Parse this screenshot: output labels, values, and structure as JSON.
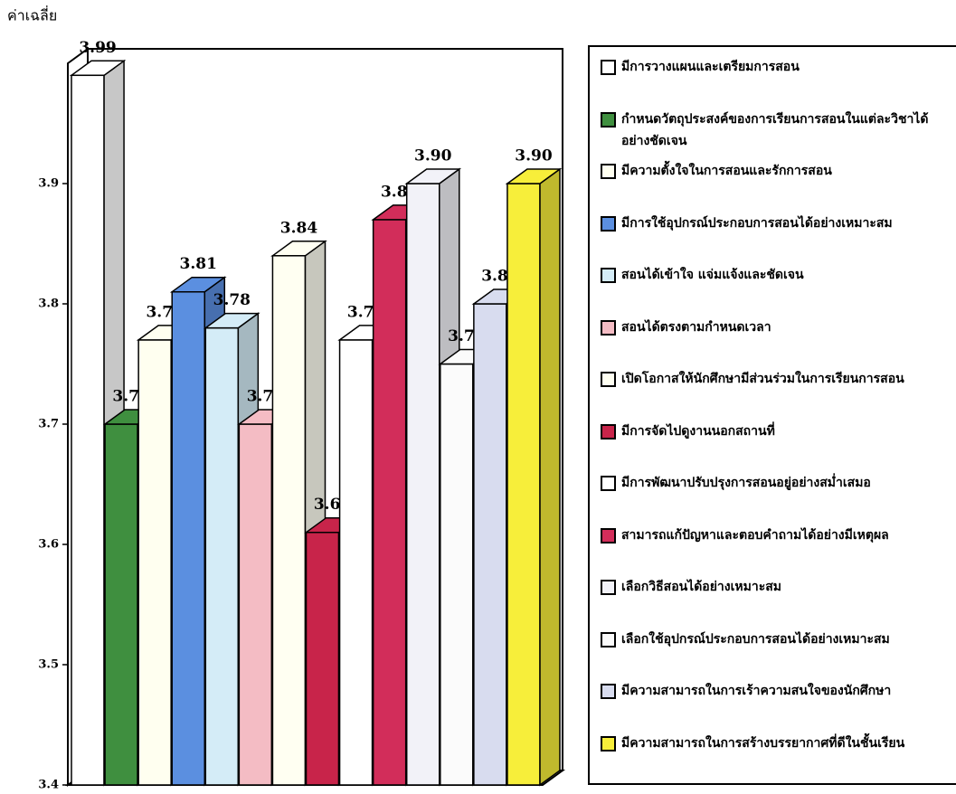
{
  "chart_data": {
    "type": "bar3d",
    "y_label": "ค่าเฉลี่ย",
    "ylim": [
      3.4,
      4.0
    ],
    "yticks": [
      3.4,
      3.5,
      3.6,
      3.7,
      3.8,
      3.9
    ],
    "series": [
      {
        "name": "มีการวางแผนและเตรียมการสอน",
        "color": "#ffffff",
        "values": [
          3.99
        ],
        "value_labels": [
          "3.99"
        ]
      },
      {
        "name": "กำหนดวัตถุประสงค์ของการเรียนการสอนในแต่ละวิชาได้อย่างชัดเจน",
        "color": "#3f8f3f",
        "values": [
          3.7
        ],
        "value_labels": [
          "3.70"
        ]
      },
      {
        "name": "มีความตั้งใจในการสอนและรักการสอน",
        "color": "#fffff0",
        "values": [
          3.77
        ],
        "value_labels": [
          "3.77"
        ]
      },
      {
        "name": "มีการใช้อุปกรณ์ประกอบการสอนได้อย่างเหมาะสม",
        "color": "#5b8fe0",
        "values": [
          3.81
        ],
        "value_labels": [
          "3.81"
        ]
      },
      {
        "name": "สอนได้เข้าใจ แจ่มแจ้งและชัดเจน",
        "color": "#d4ecf7",
        "values": [
          3.78
        ],
        "value_labels": [
          "3.78"
        ]
      },
      {
        "name": "สอนได้ตรงตามกำหนดเวลา",
        "color": "#f4bcc4",
        "values": [
          3.7
        ],
        "value_labels": [
          "3.70"
        ]
      },
      {
        "name": "เปิดโอกาสให้นักศึกษามีส่วนร่วมในการเรียนการสอน",
        "color": "#fffff2",
        "values": [
          3.84
        ],
        "value_labels": [
          "3.84"
        ]
      },
      {
        "name": "มีการจัดไปดูงานนอกสถานที่",
        "color": "#c8244a",
        "values": [
          3.61
        ],
        "value_labels": [
          "3.61"
        ]
      },
      {
        "name": "มีการพัฒนาปรับปรุงการสอนอยู่อย่างสม่ำเสมอ",
        "color": "#ffffff",
        "values": [
          3.77
        ],
        "value_labels": [
          "3.77"
        ]
      },
      {
        "name": "สามารถแก้ปัญหาและตอบคำถามได้อย่างมีเหตุผล",
        "color": "#d22d5a",
        "values": [
          3.87
        ],
        "value_labels": [
          "3.87"
        ]
      },
      {
        "name": "เลือกวิธีสอนได้อย่างเหมาะสม",
        "color": "#f2f2f8",
        "values": [
          3.9
        ],
        "value_labels": [
          "3.90"
        ]
      },
      {
        "name": "เลือกใช้อุปกรณ์ประกอบการสอนได้อย่างเหมาะสม",
        "color": "#fbfbfb",
        "values": [
          3.75
        ],
        "value_labels": [
          "3.75"
        ]
      },
      {
        "name": "มีความสามารถในการเร้าความสนใจของนักศึกษา",
        "color": "#d8dcef",
        "values": [
          3.8
        ],
        "value_labels": [
          "3.80"
        ]
      },
      {
        "name": "มีความสามารถในการสร้างบรรยากาศที่ดีในชั้นเรียน",
        "color": "#f7ee3a",
        "values": [
          3.9
        ],
        "value_labels": [
          "3.90"
        ]
      }
    ]
  }
}
